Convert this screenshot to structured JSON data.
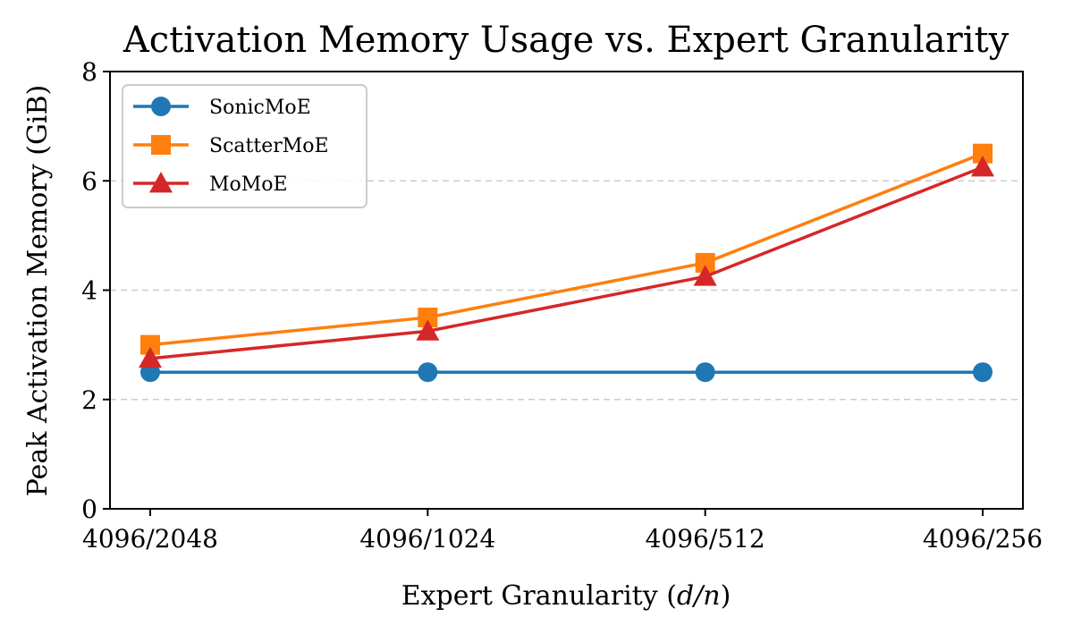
{
  "chart_data": {
    "type": "line",
    "title": "Activation Memory Usage vs. Expert Granularity",
    "xlabel": "Expert Granularity (d/n)",
    "ylabel": "Peak Activation Memory (GiB)",
    "categories": [
      "4096/2048",
      "4096/1024",
      "4096/512",
      "4096/256"
    ],
    "ylim": [
      0,
      8
    ],
    "yticks": [
      0,
      2,
      4,
      6,
      8
    ],
    "grid": "y-dashed",
    "legend_position": "top-left",
    "series": [
      {
        "name": "SonicMoE",
        "values": [
          2.5,
          2.5,
          2.5,
          2.5
        ],
        "color": "#1f77b4",
        "marker": "circle"
      },
      {
        "name": "ScatterMoE",
        "values": [
          3.0,
          3.5,
          4.5,
          6.5
        ],
        "color": "#ff7f0e",
        "marker": "square"
      },
      {
        "name": "MoMoE",
        "values": [
          2.75,
          3.25,
          4.25,
          6.25
        ],
        "color": "#d62728",
        "marker": "triangle"
      }
    ]
  }
}
